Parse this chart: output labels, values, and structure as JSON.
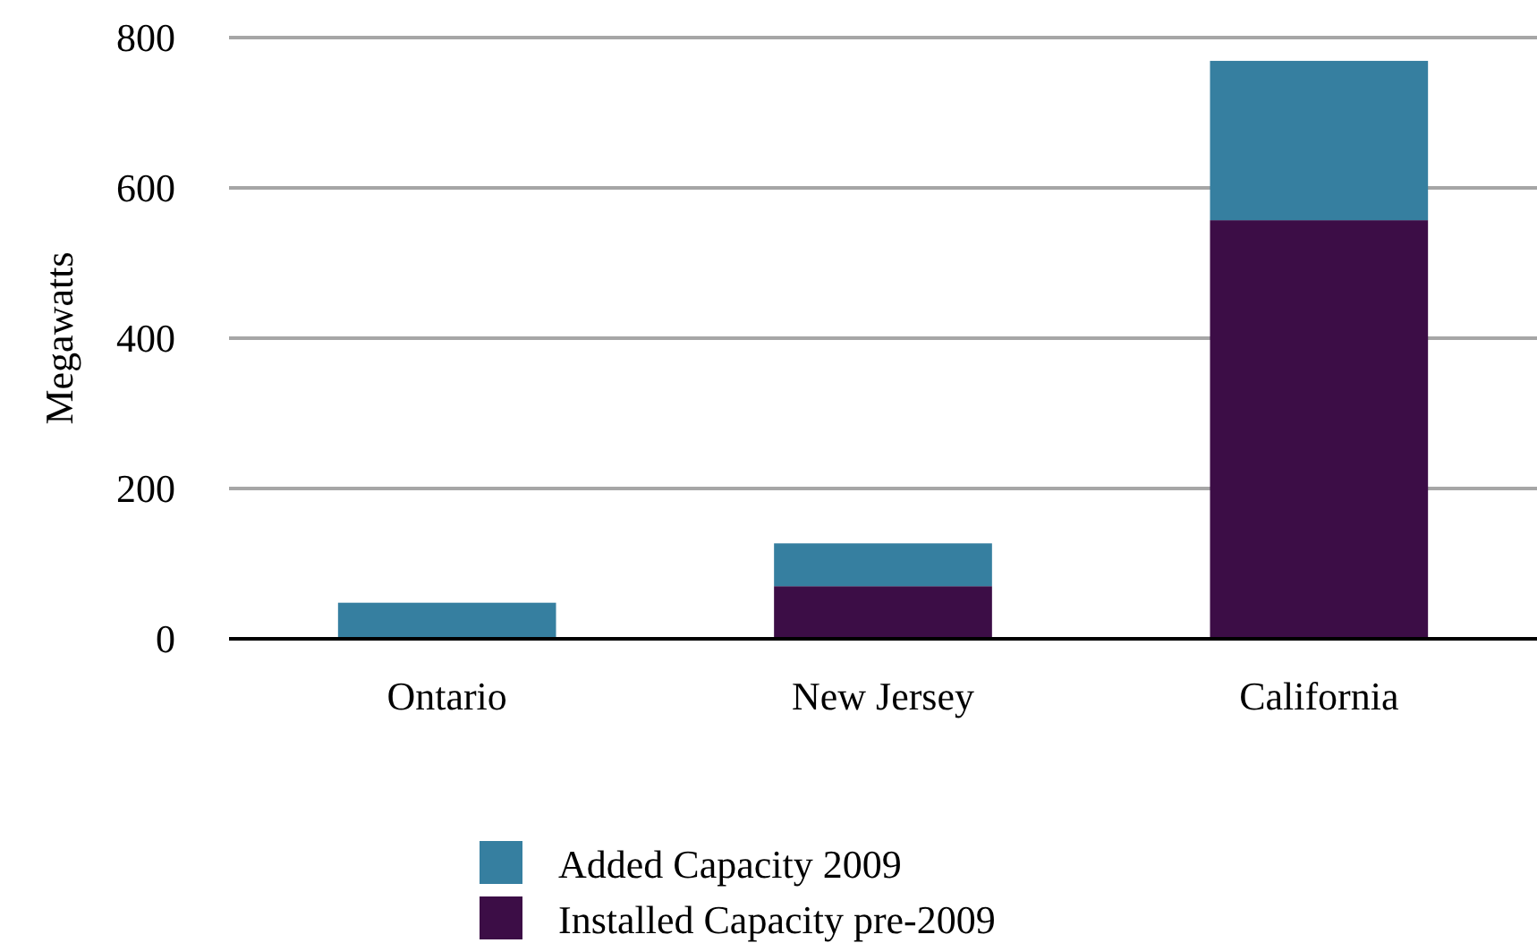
{
  "chart_data": {
    "type": "bar",
    "ylabel": "Megawatts",
    "categories": [
      "Ontario",
      "New Jersey",
      "California"
    ],
    "stacked": true,
    "series": [
      {
        "name": "Installed Capacity pre-2009",
        "color": "#3c0d46",
        "values": [
          0,
          70,
          557
        ]
      },
      {
        "name": "Added Capacity 2009",
        "color": "#367fa0",
        "values": [
          48,
          57,
          212
        ]
      }
    ],
    "ylim": [
      0,
      800
    ],
    "yticks": [
      0,
      200,
      400,
      600,
      800
    ],
    "grid": "y",
    "legend": "bottom"
  }
}
